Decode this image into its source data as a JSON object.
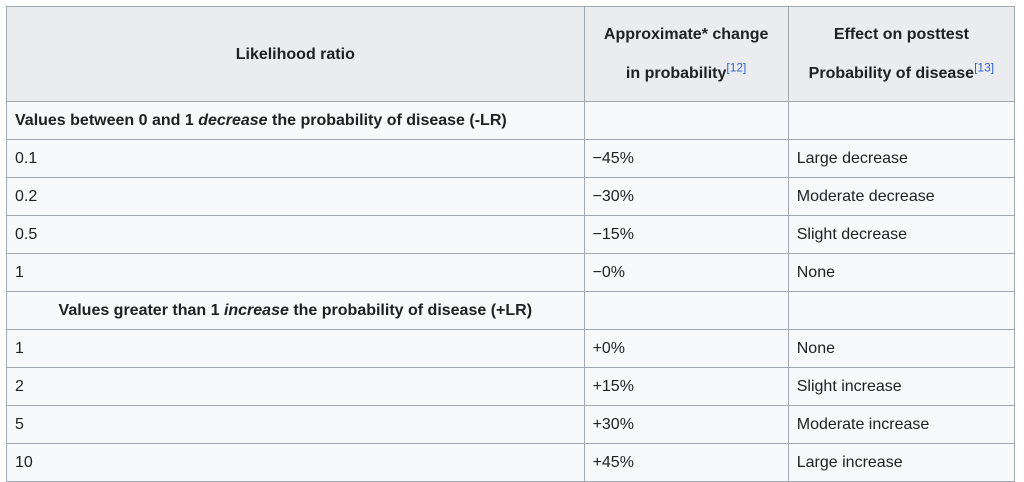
{
  "header": {
    "col1": "Likelihood ratio",
    "col2_line1": "Approximate* change",
    "col2_line2": "in probability",
    "col2_ref": "[12]",
    "col3_line1": "Effect on posttest",
    "col3_line2": "Probability of disease",
    "col3_ref": "[13]"
  },
  "section_decrease": {
    "prefix": "Values between 0 and 1 ",
    "emph": "decrease",
    "suffix": " the probability of disease (-LR)"
  },
  "rows_decrease": [
    {
      "lr": "0.1",
      "change": "−45%",
      "effect": "Large decrease"
    },
    {
      "lr": "0.2",
      "change": "−30%",
      "effect": "Moderate decrease"
    },
    {
      "lr": "0.5",
      "change": "−15%",
      "effect": "Slight decrease"
    },
    {
      "lr": "1",
      "change": "−0%",
      "effect": "None"
    }
  ],
  "section_increase": {
    "prefix": "Values greater than 1 ",
    "emph": "increase",
    "suffix": " the probability of disease (+LR)"
  },
  "rows_increase": [
    {
      "lr": "1",
      "change": "+0%",
      "effect": "None"
    },
    {
      "lr": "2",
      "change": "+15%",
      "effect": "Slight increase"
    },
    {
      "lr": "5",
      "change": "+30%",
      "effect": "Moderate increase"
    },
    {
      "lr": "10",
      "change": "+45%",
      "effect": "Large increase"
    }
  ]
}
